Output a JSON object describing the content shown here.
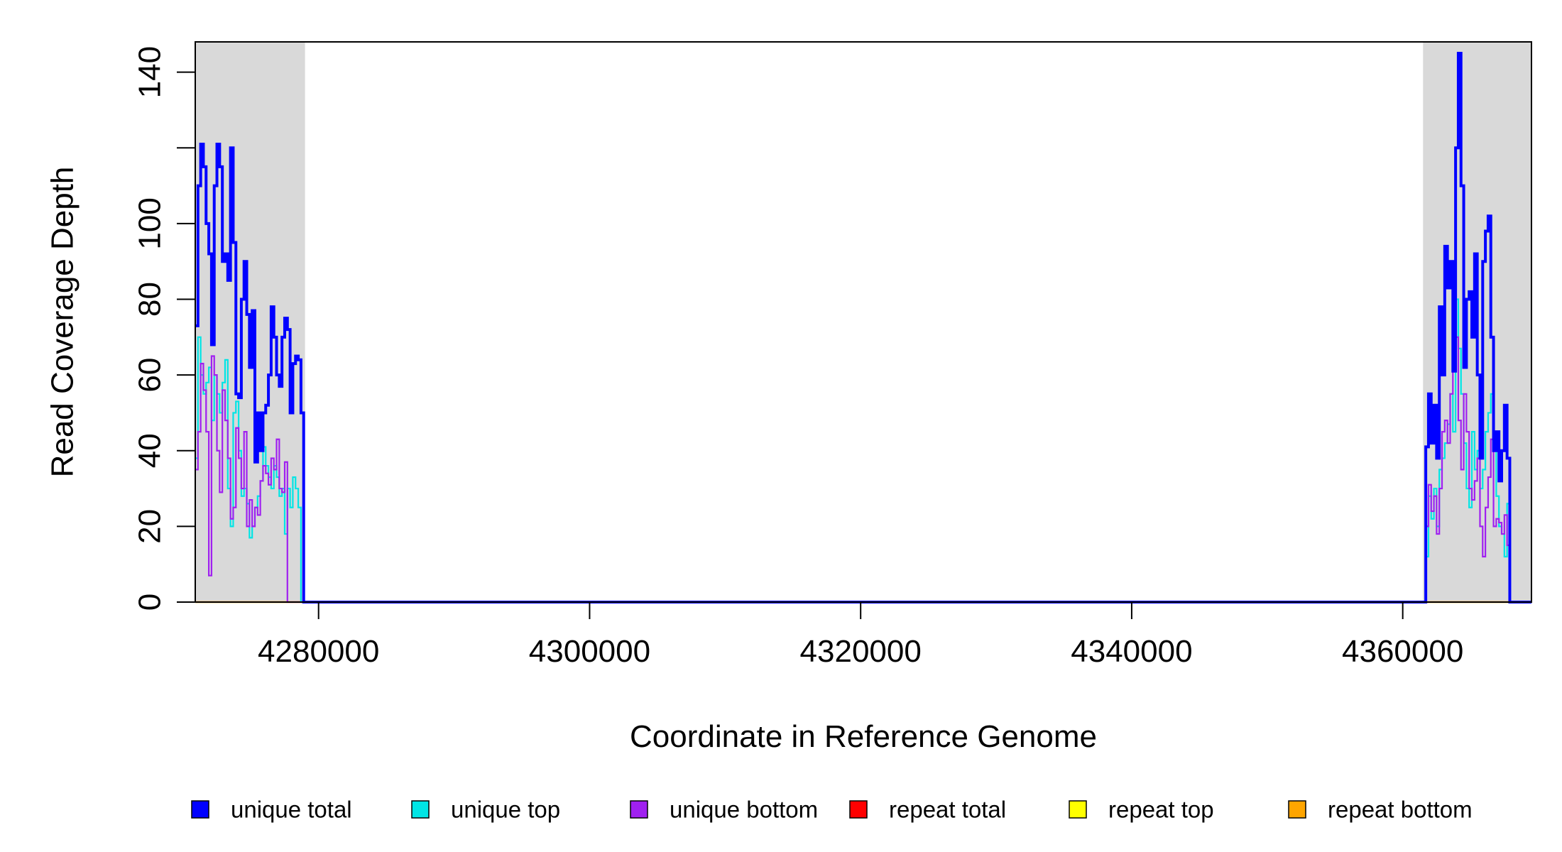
{
  "chart_data": {
    "type": "line",
    "xlabel": "Coordinate in Reference Genome",
    "ylabel": "Read Coverage Depth",
    "xlim": [
      4270900,
      4369500
    ],
    "ylim": [
      0,
      148
    ],
    "x_ticks": [
      4280000,
      4300000,
      4320000,
      4340000,
      4360000
    ],
    "x_tick_labels": [
      "4280000",
      "4300000",
      "4320000",
      "4340000",
      "4360000"
    ],
    "y_ticks": [
      0,
      20,
      40,
      60,
      80,
      100,
      120,
      140
    ],
    "y_tick_labels": [
      "0",
      "20",
      "40",
      "60",
      "80",
      "100",
      "",
      "140"
    ],
    "shaded_regions": [
      [
        4270900,
        4279000
      ],
      [
        4361500,
        4369500
      ]
    ],
    "shade_color": "#d9d9d9",
    "legend_position": "bottom",
    "series": [
      {
        "name": "unique total",
        "color": "#0000ff",
        "step": true,
        "x": [
          4270900,
          4271100,
          4271300,
          4271500,
          4271700,
          4271900,
          4272100,
          4272300,
          4272500,
          4272700,
          4272900,
          4273100,
          4273300,
          4273500,
          4273700,
          4273900,
          4274100,
          4274300,
          4274500,
          4274700,
          4274900,
          4275100,
          4275300,
          4275500,
          4275700,
          4275900,
          4276100,
          4276300,
          4276500,
          4276700,
          4276900,
          4277100,
          4277300,
          4277500,
          4277700,
          4277900,
          4278100,
          4278300,
          4278500,
          4278700,
          4278900,
          4279000,
          4361500,
          4361700,
          4361900,
          4362100,
          4362300,
          4362500,
          4362700,
          4362900,
          4363100,
          4363300,
          4363500,
          4363700,
          4363900,
          4364100,
          4364300,
          4364500,
          4364700,
          4364900,
          4365100,
          4365300,
          4365500,
          4365700,
          4365900,
          4366100,
          4366300,
          4366500,
          4366700,
          4366900,
          4367100,
          4367300,
          4367500,
          4367700,
          4367900,
          4368100,
          4368300,
          4368500,
          4368700,
          4368900,
          4369100,
          4369300,
          4369500
        ],
        "values": [
          73,
          110,
          121,
          115,
          100,
          92,
          68,
          110,
          121,
          115,
          90,
          92,
          85,
          120,
          95,
          55,
          54,
          80,
          90,
          76,
          62,
          77,
          37,
          50,
          40,
          50,
          52,
          60,
          78,
          70,
          60,
          57,
          70,
          75,
          72,
          50,
          63,
          65,
          64,
          50,
          0,
          0,
          0,
          41,
          55,
          42,
          52,
          38,
          78,
          60,
          94,
          83,
          90,
          61,
          120,
          145,
          110,
          62,
          80,
          82,
          70,
          92,
          60,
          38,
          90,
          98,
          102,
          70,
          40,
          45,
          32,
          40,
          52,
          38,
          0,
          0,
          0,
          0,
          0,
          0,
          0,
          0,
          0
        ]
      },
      {
        "name": "unique top",
        "color": "#00e5e5",
        "step": true,
        "x": [
          4270900,
          4271100,
          4271300,
          4271500,
          4271700,
          4271900,
          4272100,
          4272300,
          4272500,
          4272700,
          4272900,
          4273100,
          4273300,
          4273500,
          4273700,
          4273900,
          4274100,
          4274300,
          4274500,
          4274700,
          4274900,
          4275100,
          4275300,
          4275500,
          4275700,
          4275900,
          4276100,
          4276300,
          4276500,
          4276700,
          4276900,
          4277100,
          4277300,
          4277500,
          4277700,
          4277900,
          4278100,
          4278300,
          4278500,
          4278700,
          4278900,
          4279000,
          4361500,
          4361700,
          4361900,
          4362100,
          4362300,
          4362500,
          4362700,
          4362900,
          4363100,
          4363300,
          4363500,
          4363700,
          4363900,
          4364100,
          4364300,
          4364500,
          4364700,
          4364900,
          4365100,
          4365300,
          4365500,
          4365700,
          4365900,
          4366100,
          4366300,
          4366500,
          4366700,
          4366900,
          4367100,
          4367300,
          4367500,
          4367700,
          4367900,
          4368100,
          4368300,
          4368500,
          4368700,
          4368900,
          4369100,
          4369300,
          4369500
        ],
        "values": [
          38,
          70,
          60,
          55,
          58,
          62,
          48,
          60,
          55,
          50,
          58,
          64,
          30,
          20,
          50,
          53,
          40,
          28,
          30,
          26,
          17,
          20,
          25,
          28,
          32,
          41,
          36,
          33,
          30,
          36,
          33,
          28,
          30,
          18,
          30,
          25,
          33,
          30,
          25,
          0,
          0,
          0,
          0,
          12,
          28,
          22,
          30,
          20,
          35,
          38,
          42,
          47,
          55,
          45,
          80,
          67,
          55,
          42,
          30,
          25,
          45,
          35,
          40,
          30,
          35,
          45,
          50,
          55,
          40,
          28,
          20,
          18,
          12,
          26,
          0,
          0,
          0,
          0,
          0,
          0,
          0,
          0,
          0
        ]
      },
      {
        "name": "unique bottom",
        "color": "#a020f0",
        "step": true,
        "x": [
          4270900,
          4271100,
          4271300,
          4271500,
          4271700,
          4271900,
          4272100,
          4272300,
          4272500,
          4272700,
          4272900,
          4273100,
          4273300,
          4273500,
          4273700,
          4273900,
          4274100,
          4274300,
          4274500,
          4274700,
          4274900,
          4275100,
          4275300,
          4275500,
          4275700,
          4275900,
          4276100,
          4276300,
          4276500,
          4276700,
          4276900,
          4277100,
          4277300,
          4277500,
          4277700,
          4277900,
          4278100,
          4278300,
          4278500,
          4278700,
          4278900,
          4279000,
          4361500,
          4361700,
          4361900,
          4362100,
          4362300,
          4362500,
          4362700,
          4362900,
          4363100,
          4363300,
          4363500,
          4363700,
          4363900,
          4364100,
          4364300,
          4364500,
          4364700,
          4364900,
          4365100,
          4365300,
          4365500,
          4365700,
          4365900,
          4366100,
          4366300,
          4366500,
          4366700,
          4366900,
          4367100,
          4367300,
          4367500,
          4367700,
          4367900,
          4368100,
          4368300,
          4368500,
          4368700,
          4368900,
          4369100,
          4369300,
          4369500
        ],
        "values": [
          35,
          45,
          63,
          56,
          45,
          7,
          65,
          60,
          40,
          29,
          56,
          48,
          38,
          22,
          25,
          46,
          38,
          30,
          45,
          20,
          27,
          20,
          25,
          23,
          32,
          36,
          34,
          31,
          38,
          35,
          43,
          30,
          29,
          37,
          0,
          0,
          0,
          0,
          0,
          0,
          0,
          0,
          0,
          20,
          31,
          24,
          28,
          18,
          30,
          45,
          48,
          42,
          55,
          62,
          70,
          48,
          35,
          55,
          45,
          30,
          27,
          32,
          38,
          20,
          12,
          25,
          33,
          43,
          20,
          22,
          21,
          18,
          23,
          15,
          0,
          0,
          0,
          0,
          0,
          0,
          0,
          0,
          0
        ]
      },
      {
        "name": "repeat total",
        "color": "#ff0000",
        "step": true,
        "x": [
          4270900,
          4369500
        ],
        "values": [
          0,
          0
        ]
      },
      {
        "name": "repeat top",
        "color": "#ffff00",
        "step": true,
        "x": [
          4270900,
          4369500
        ],
        "values": [
          0,
          0
        ]
      },
      {
        "name": "repeat bottom",
        "color": "#ffa500",
        "step": true,
        "x": [
          4270900,
          4369500
        ],
        "values": [
          0,
          0
        ]
      }
    ]
  }
}
